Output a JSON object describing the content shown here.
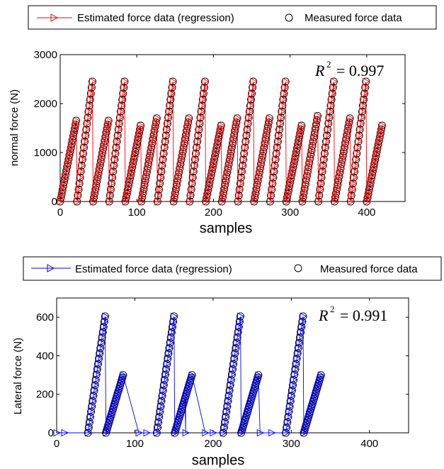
{
  "chart_data": [
    {
      "type": "line",
      "xlabel": "samples",
      "ylabel": "normal force (N)",
      "xlim": [
        0,
        450
      ],
      "ylim": [
        0,
        3000
      ],
      "xticks": [
        0,
        100,
        200,
        300,
        400
      ],
      "yticks": [
        0,
        1000,
        2000,
        3000
      ],
      "xtick_labels": [
        "0",
        "100",
        "200",
        "300",
        "400"
      ],
      "ytick_labels": [
        "0",
        "1000",
        "2000",
        "3000"
      ],
      "grid": false,
      "legend_position": "above",
      "annotation": {
        "symbol": "R",
        "superscript": "2",
        "text": "= 0.997"
      },
      "series": [
        {
          "name": "Estimated force data (regression)",
          "color": "#ff0000",
          "marker": "triangle-right",
          "style": "line+markers"
        },
        {
          "name": "Measured force data",
          "color": "#000000",
          "marker": "circle",
          "style": "markers"
        }
      ],
      "ramps": [
        {
          "start": 0,
          "end": 21,
          "peak": 1650
        },
        {
          "start": 22,
          "end": 42,
          "peak": 2450
        },
        {
          "start": 43,
          "end": 63,
          "peak": 1650
        },
        {
          "start": 64,
          "end": 84,
          "peak": 2450
        },
        {
          "start": 85,
          "end": 105,
          "peak": 1550
        },
        {
          "start": 106,
          "end": 126,
          "peak": 1700
        },
        {
          "start": 127,
          "end": 147,
          "peak": 2450
        },
        {
          "start": 148,
          "end": 168,
          "peak": 1700
        },
        {
          "start": 169,
          "end": 189,
          "peak": 2450
        },
        {
          "start": 190,
          "end": 210,
          "peak": 1550
        },
        {
          "start": 211,
          "end": 231,
          "peak": 1700
        },
        {
          "start": 232,
          "end": 252,
          "peak": 2450
        },
        {
          "start": 253,
          "end": 273,
          "peak": 1700
        },
        {
          "start": 274,
          "end": 294,
          "peak": 2450
        },
        {
          "start": 295,
          "end": 315,
          "peak": 1550
        },
        {
          "start": 316,
          "end": 336,
          "peak": 1750
        },
        {
          "start": 337,
          "end": 357,
          "peak": 2450
        },
        {
          "start": 358,
          "end": 378,
          "peak": 1700
        },
        {
          "start": 379,
          "end": 399,
          "peak": 2450
        },
        {
          "start": 400,
          "end": 420,
          "peak": 1550
        }
      ]
    },
    {
      "type": "line",
      "xlabel": "samples",
      "ylabel": "Lateral force (N)",
      "xlim": [
        0,
        450
      ],
      "ylim": [
        0,
        700
      ],
      "xticks": [
        0,
        100,
        200,
        300,
        400
      ],
      "yticks": [
        0,
        200,
        400,
        600
      ],
      "xtick_labels": [
        "0",
        "100",
        "200",
        "300",
        "400"
      ],
      "ytick_labels": [
        "0",
        "200",
        "400",
        "600"
      ],
      "grid": false,
      "legend_position": "above",
      "annotation": {
        "symbol": "R",
        "superscript": "2",
        "text": "= 0.991"
      },
      "series": [
        {
          "name": "Estimated force data (regression)",
          "color": "#0000ff",
          "marker": "triangle-right",
          "style": "line+markers"
        },
        {
          "name": "Measured force data",
          "color": "#000000",
          "marker": "circle",
          "style": "markers"
        }
      ],
      "flat_points": [
        0,
        10,
        105,
        115,
        165,
        190,
        200,
        260,
        275
      ],
      "ramps": [
        {
          "start": 40,
          "end": 62,
          "peak": 605
        },
        {
          "start": 63,
          "end": 85,
          "peak": 300
        },
        {
          "start": 128,
          "end": 150,
          "peak": 605
        },
        {
          "start": 151,
          "end": 173,
          "peak": 300
        },
        {
          "start": 213,
          "end": 235,
          "peak": 605
        },
        {
          "start": 236,
          "end": 258,
          "peak": 300
        },
        {
          "start": 293,
          "end": 315,
          "peak": 605
        },
        {
          "start": 316,
          "end": 338,
          "peak": 300
        }
      ]
    }
  ]
}
